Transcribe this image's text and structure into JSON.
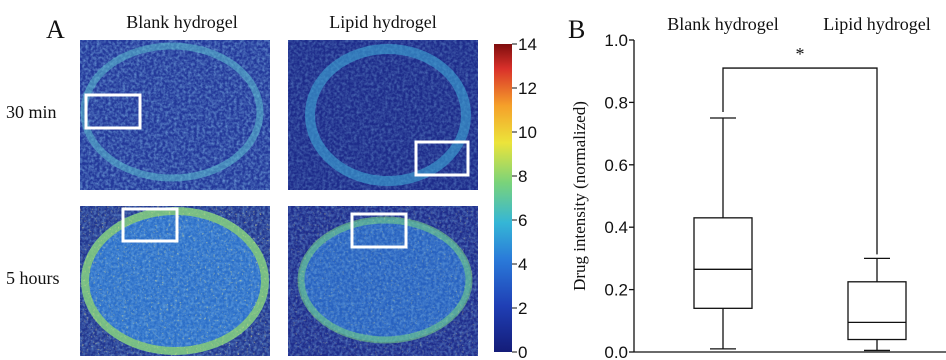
{
  "panel_a": {
    "letter": "A",
    "column_titles": [
      "Blank hydrogel",
      "Lipid hydrogel"
    ],
    "row_titles": [
      "30 min",
      "5 hours"
    ],
    "colorbar": {
      "ticks": [
        "0",
        "2",
        "4",
        "6",
        "8",
        "10",
        "12",
        "14"
      ],
      "range": [
        0,
        14
      ],
      "colormap": "jet",
      "colors": [
        "#1f2a8c",
        "#2a6fd6",
        "#37b6d8",
        "#7fd36f",
        "#f2e03a",
        "#f59a2a",
        "#d8322a",
        "#8a1010"
      ]
    },
    "images": [
      {
        "row": "30 min",
        "column": "Blank hydrogel",
        "description_level": "low",
        "roi_box": true
      },
      {
        "row": "30 min",
        "column": "Lipid hydrogel",
        "description_level": "low",
        "roi_box": true
      },
      {
        "row": "5 hours",
        "column": "Blank hydrogel",
        "description_level": "medium",
        "roi_box": true
      },
      {
        "row": "5 hours",
        "column": "Lipid hydrogel",
        "description_level": "low",
        "roi_box": true
      }
    ]
  },
  "chart_data": {
    "letter": "B",
    "type": "boxplot",
    "categories": [
      "Blank hydrogel",
      "Lipid hydrogel"
    ],
    "ylabel": "Drug intensity (normalized)",
    "xlabel": "",
    "ylim": [
      0,
      1.0
    ],
    "yticks": [
      "0.0",
      "0.2",
      "0.4",
      "0.6",
      "0.8",
      "1.0"
    ],
    "boxes": [
      {
        "name": "Blank hydrogel",
        "min": 0.01,
        "q1": 0.14,
        "median": 0.265,
        "q3": 0.43,
        "max": 0.75
      },
      {
        "name": "Lipid hydrogel",
        "min": 0.005,
        "q1": 0.04,
        "median": 0.095,
        "q3": 0.225,
        "max": 0.3
      }
    ],
    "significance": {
      "label": "*",
      "between": [
        "Blank hydrogel",
        "Lipid hydrogel"
      ],
      "y": 0.91
    }
  }
}
